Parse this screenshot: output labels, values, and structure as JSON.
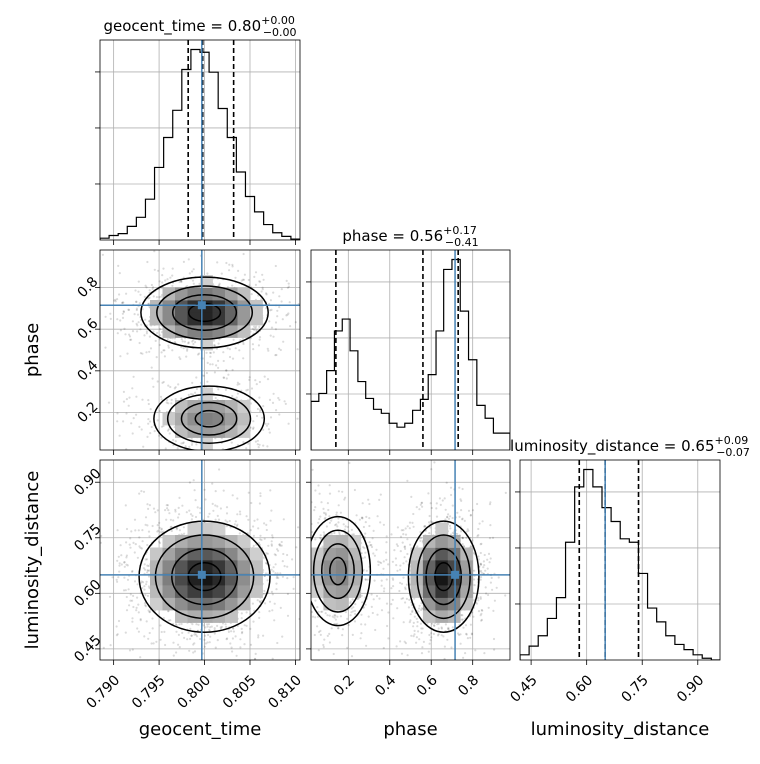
{
  "chart_data": {
    "type": "corner",
    "parameters": [
      "geocent_time",
      "phase",
      "luminosity_distance"
    ],
    "truths": [
      0.7997,
      0.715,
      0.65
    ],
    "truth_color": "#4682b4",
    "hist_color": "#000000",
    "grid": true,
    "panels_1d": [
      {
        "param": "geocent_time",
        "title_prefix": "geocent_time = 0.80",
        "title_sup": "+0.00",
        "title_sub": "−0.00",
        "range": [
          0.7885,
          0.8105
        ],
        "ticks": [
          0.79,
          0.795,
          0.8,
          0.805,
          0.81
        ],
        "tick_labels": [
          "0.790",
          "0.795",
          "0.800",
          "0.805",
          "0.810"
        ],
        "quantiles": [
          0.7982,
          0.7998,
          0.8032
        ],
        "edges": [
          0.7885,
          0.7895,
          0.7905,
          0.7915,
          0.7925,
          0.7935,
          0.7945,
          0.7955,
          0.7965,
          0.7975,
          0.7985,
          0.7995,
          0.8005,
          0.8015,
          0.8025,
          0.8035,
          0.8045,
          0.8055,
          0.8065,
          0.8075,
          0.8085,
          0.8095,
          0.8105
        ],
        "counts": [
          2,
          5,
          7,
          15,
          25,
          45,
          80,
          113,
          143,
          188,
          210,
          207,
          185,
          145,
          113,
          75,
          48,
          31,
          17,
          8,
          4,
          1
        ]
      },
      {
        "param": "phase",
        "title_prefix": "phase = 0.56",
        "title_sup": "+0.17",
        "title_sub": "−0.41",
        "range": [
          0.02,
          0.98
        ],
        "ticks": [
          0.2,
          0.4,
          0.6,
          0.8
        ],
        "tick_labels": [
          "0.2",
          "0.4",
          "0.6",
          "0.8"
        ],
        "quantiles": [
          0.14,
          0.56,
          0.73
        ],
        "edges": [
          0.02,
          0.0577,
          0.0954,
          0.1331,
          0.1708,
          0.2085,
          0.2462,
          0.2839,
          0.3216,
          0.3593,
          0.397,
          0.4347,
          0.4724,
          0.5101,
          0.5478,
          0.5855,
          0.6232,
          0.66,
          0.7,
          0.74,
          0.78,
          0.82,
          0.86,
          0.9,
          0.94,
          0.98
        ],
        "counts": [
          245,
          285,
          400,
          600,
          660,
          500,
          345,
          260,
          205,
          185,
          135,
          115,
          135,
          200,
          255,
          380,
          600,
          910,
          960,
          700,
          455,
          225,
          160,
          85,
          85
        ]
      },
      {
        "param": "luminosity_distance",
        "title_prefix": "luminosity_distance = 0.65",
        "title_sup": "+0.09",
        "title_sub": "−0.07",
        "range": [
          0.42,
          0.96
        ],
        "ticks": [
          0.45,
          0.6,
          0.75,
          0.9
        ],
        "tick_labels": [
          "0.45",
          "0.60",
          "0.75",
          "0.90"
        ],
        "quantiles": [
          0.58,
          0.65,
          0.74
        ],
        "edges": [
          0.42,
          0.4446,
          0.4692,
          0.4938,
          0.5184,
          0.543,
          0.5676,
          0.5922,
          0.6168,
          0.6414,
          0.666,
          0.6906,
          0.7152,
          0.7398,
          0.7644,
          0.789,
          0.8136,
          0.8382,
          0.8628,
          0.8874,
          0.912,
          0.9366,
          0.96
        ],
        "counts": [
          3,
          8,
          14,
          24,
          36,
          68,
          100,
          110,
          100,
          88,
          80,
          70,
          68,
          50,
          30,
          22,
          14,
          9,
          6,
          3,
          1,
          0
        ]
      }
    ],
    "panels_2d": [
      {
        "x_param": "geocent_time",
        "y_param": "phase",
        "y_ticks": [
          0.2,
          0.4,
          0.6,
          0.8
        ],
        "y_tick_labels": [
          "0.2",
          "0.4",
          "0.6",
          "0.8"
        ],
        "modes": [
          {
            "cx": 0.8,
            "cy": 0.68,
            "sx": 0.0035,
            "sy": 0.085,
            "w": 1.0
          },
          {
            "cx": 0.8005,
            "cy": 0.17,
            "sx": 0.0033,
            "sy": 0.085,
            "w": 0.55
          }
        ]
      },
      {
        "x_param": "geocent_time",
        "y_param": "luminosity_distance",
        "y_ticks": [
          0.45,
          0.6,
          0.75,
          0.9
        ],
        "y_tick_labels": [
          "0.45",
          "0.60",
          "0.75",
          "0.90"
        ],
        "modes": [
          {
            "cx": 0.8,
            "cy": 0.645,
            "sx": 0.0036,
            "sy": 0.075,
            "w": 1.0
          }
        ]
      },
      {
        "x_param": "phase",
        "y_param": "luminosity_distance",
        "modes": [
          {
            "cx": 0.66,
            "cy": 0.645,
            "sx": 0.085,
            "sy": 0.075,
            "w": 1.0
          },
          {
            "cx": 0.15,
            "cy": 0.66,
            "sx": 0.085,
            "sy": 0.08,
            "w": 0.55
          }
        ]
      }
    ],
    "axis_labels": {
      "bottom": [
        "geocent_time",
        "phase",
        "luminosity_distance"
      ],
      "left": [
        "phase",
        "luminosity_distance"
      ]
    }
  }
}
